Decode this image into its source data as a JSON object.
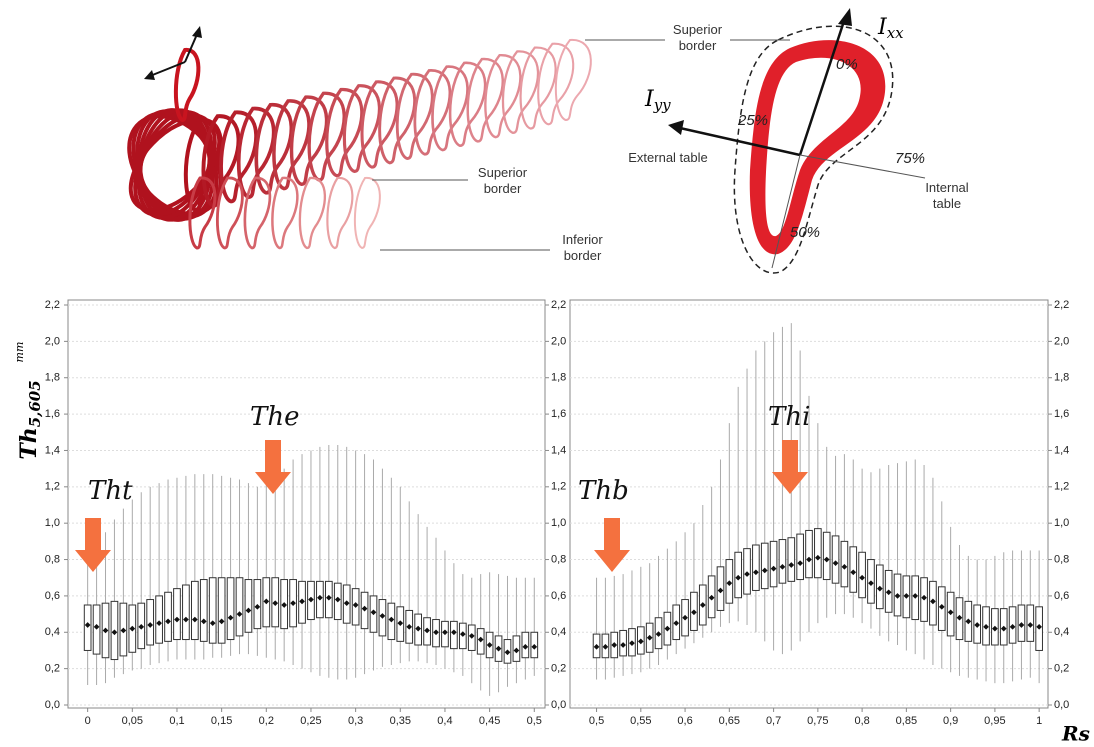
{
  "diagram": {
    "superior_border_1": "Superior border",
    "superior_border_2": "Superior border",
    "inferior_border": "Inferior border",
    "external_table": "External table",
    "internal_table": "Internal table",
    "p0": "0%",
    "p25": "25%",
    "p50": "50%",
    "p75": "75%",
    "ixx": {
      "base": "I",
      "sub": "xx"
    },
    "iyy": {
      "base": "I",
      "sub": "yy"
    }
  },
  "figure": {
    "y_label": "Th",
    "y_label_sub": "5,605",
    "y_unit": "mm",
    "x_label": "Rs"
  },
  "chart_data": [
    {
      "type": "box",
      "color": "#333333",
      "whisker_color": "#aaaaaa",
      "grid": true,
      "annotation_color": "#f4713f",
      "annotations": [
        "Tht",
        "The"
      ],
      "x": [
        0,
        0.01,
        0.02,
        0.03,
        0.04,
        0.05,
        0.06,
        0.07,
        0.08,
        0.09,
        0.1,
        0.11,
        0.12,
        0.13,
        0.14,
        0.15,
        0.16,
        0.17,
        0.18,
        0.19,
        0.2,
        0.21,
        0.22,
        0.23,
        0.24,
        0.25,
        0.26,
        0.27,
        0.28,
        0.29,
        0.3,
        0.31,
        0.32,
        0.33,
        0.34,
        0.35,
        0.36,
        0.37,
        0.38,
        0.39,
        0.4,
        0.41,
        0.42,
        0.43,
        0.44,
        0.45,
        0.46,
        0.47,
        0.48,
        0.49,
        0.5
      ],
      "median": [
        0.44,
        0.43,
        0.41,
        0.4,
        0.41,
        0.42,
        0.43,
        0.44,
        0.45,
        0.46,
        0.47,
        0.47,
        0.47,
        0.46,
        0.45,
        0.46,
        0.48,
        0.5,
        0.52,
        0.54,
        0.57,
        0.56,
        0.55,
        0.56,
        0.57,
        0.58,
        0.59,
        0.59,
        0.58,
        0.56,
        0.55,
        0.53,
        0.51,
        0.49,
        0.47,
        0.45,
        0.43,
        0.42,
        0.41,
        0.4,
        0.4,
        0.4,
        0.39,
        0.38,
        0.36,
        0.33,
        0.31,
        0.29,
        0.3,
        0.32,
        0.32
      ],
      "q1": [
        0.3,
        0.28,
        0.26,
        0.25,
        0.27,
        0.29,
        0.31,
        0.33,
        0.34,
        0.35,
        0.36,
        0.36,
        0.36,
        0.35,
        0.34,
        0.34,
        0.36,
        0.38,
        0.4,
        0.42,
        0.43,
        0.43,
        0.42,
        0.43,
        0.45,
        0.47,
        0.48,
        0.48,
        0.47,
        0.45,
        0.44,
        0.42,
        0.4,
        0.38,
        0.36,
        0.35,
        0.34,
        0.33,
        0.33,
        0.32,
        0.32,
        0.31,
        0.31,
        0.3,
        0.28,
        0.26,
        0.24,
        0.23,
        0.24,
        0.26,
        0.26
      ],
      "q3": [
        0.55,
        0.55,
        0.56,
        0.57,
        0.56,
        0.55,
        0.56,
        0.58,
        0.6,
        0.62,
        0.64,
        0.66,
        0.68,
        0.69,
        0.7,
        0.7,
        0.7,
        0.7,
        0.69,
        0.69,
        0.7,
        0.7,
        0.69,
        0.69,
        0.68,
        0.68,
        0.68,
        0.68,
        0.67,
        0.66,
        0.64,
        0.62,
        0.6,
        0.58,
        0.56,
        0.54,
        0.52,
        0.5,
        0.48,
        0.47,
        0.46,
        0.46,
        0.45,
        0.44,
        0.42,
        0.4,
        0.38,
        0.36,
        0.38,
        0.4,
        0.4
      ],
      "min": [
        0.11,
        0.11,
        0.12,
        0.15,
        0.17,
        0.19,
        0.2,
        0.22,
        0.23,
        0.24,
        0.25,
        0.25,
        0.25,
        0.25,
        0.26,
        0.26,
        0.27,
        0.28,
        0.28,
        0.27,
        0.26,
        0.25,
        0.24,
        0.22,
        0.2,
        0.18,
        0.16,
        0.15,
        0.14,
        0.14,
        0.15,
        0.17,
        0.19,
        0.21,
        0.22,
        0.23,
        0.24,
        0.24,
        0.23,
        0.22,
        0.2,
        0.18,
        0.16,
        0.12,
        0.08,
        0.05,
        0.07,
        0.1,
        0.12,
        0.14,
        0.16
      ],
      "max": [
        0.82,
        0.88,
        0.95,
        1.02,
        1.08,
        1.13,
        1.17,
        1.2,
        1.22,
        1.24,
        1.25,
        1.26,
        1.27,
        1.27,
        1.27,
        1.26,
        1.25,
        1.24,
        1.22,
        1.2,
        1.22,
        1.26,
        1.3,
        1.35,
        1.38,
        1.4,
        1.42,
        1.43,
        1.43,
        1.42,
        1.4,
        1.38,
        1.35,
        1.3,
        1.25,
        1.2,
        1.12,
        1.05,
        0.98,
        0.92,
        0.85,
        0.78,
        0.72,
        0.7,
        0.72,
        0.73,
        0.72,
        0.71,
        0.7,
        0.7,
        0.7
      ],
      "xlim": [
        -0.022,
        0.512
      ],
      "ylim": [
        0,
        2.2
      ],
      "xticks": [
        0,
        {
          "value": 0.05,
          "label": "0,05"
        },
        {
          "value": 0.1,
          "label": "0,1"
        },
        {
          "value": 0.15,
          "label": "0,15"
        },
        {
          "value": 0.2,
          "label": "0,2"
        },
        {
          "value": 0.25,
          "label": "0,25"
        },
        {
          "value": 0.3,
          "label": "0,3"
        },
        {
          "value": 0.35,
          "label": "0,35"
        },
        {
          "value": 0.4,
          "label": "0,4"
        },
        {
          "value": 0.45,
          "label": "0,45"
        },
        {
          "value": 0.5,
          "label": "0,5"
        }
      ],
      "yticks": [
        {
          "value": 0,
          "label": "0,0"
        },
        {
          "value": 0.2,
          "label": "0,2"
        },
        {
          "value": 0.4,
          "label": "0,4"
        },
        {
          "value": 0.6,
          "label": "0,6"
        },
        {
          "value": 0.8,
          "label": "0,8"
        },
        {
          "value": 1.0,
          "label": "1,0"
        },
        {
          "value": 1.2,
          "label": "1,2"
        },
        {
          "value": 1.4,
          "label": "1,4"
        },
        {
          "value": 1.6,
          "label": "1,6"
        },
        {
          "value": 1.8,
          "label": "1,8"
        },
        {
          "value": 2.0,
          "label": "2,0"
        },
        {
          "value": 2.2,
          "label": "2,2"
        }
      ]
    },
    {
      "type": "box",
      "color": "#333333",
      "whisker_color": "#aaaaaa",
      "grid": true,
      "annotation_color": "#f4713f",
      "annotations": [
        "Thb",
        "Thi"
      ],
      "x": [
        0.5,
        0.51,
        0.52,
        0.53,
        0.54,
        0.55,
        0.56,
        0.57,
        0.58,
        0.59,
        0.6,
        0.61,
        0.62,
        0.63,
        0.64,
        0.65,
        0.66,
        0.67,
        0.68,
        0.69,
        0.7,
        0.71,
        0.72,
        0.73,
        0.74,
        0.75,
        0.76,
        0.77,
        0.78,
        0.79,
        0.8,
        0.81,
        0.82,
        0.83,
        0.84,
        0.85,
        0.86,
        0.87,
        0.88,
        0.89,
        0.9,
        0.91,
        0.92,
        0.93,
        0.94,
        0.95,
        0.96,
        0.97,
        0.98,
        0.99,
        1
      ],
      "median": [
        0.32,
        0.32,
        0.33,
        0.33,
        0.34,
        0.35,
        0.37,
        0.39,
        0.42,
        0.45,
        0.48,
        0.51,
        0.55,
        0.59,
        0.63,
        0.67,
        0.7,
        0.72,
        0.73,
        0.74,
        0.75,
        0.76,
        0.77,
        0.78,
        0.8,
        0.81,
        0.8,
        0.78,
        0.76,
        0.73,
        0.7,
        0.67,
        0.64,
        0.62,
        0.6,
        0.6,
        0.6,
        0.59,
        0.57,
        0.54,
        0.51,
        0.48,
        0.46,
        0.44,
        0.43,
        0.42,
        0.42,
        0.43,
        0.44,
        0.44,
        0.43
      ],
      "q1": [
        0.26,
        0.26,
        0.26,
        0.27,
        0.27,
        0.28,
        0.29,
        0.31,
        0.33,
        0.36,
        0.38,
        0.41,
        0.44,
        0.48,
        0.52,
        0.56,
        0.59,
        0.61,
        0.63,
        0.64,
        0.65,
        0.67,
        0.68,
        0.69,
        0.7,
        0.7,
        0.69,
        0.67,
        0.65,
        0.62,
        0.59,
        0.56,
        0.53,
        0.51,
        0.49,
        0.48,
        0.47,
        0.46,
        0.44,
        0.41,
        0.38,
        0.36,
        0.35,
        0.34,
        0.33,
        0.33,
        0.33,
        0.34,
        0.35,
        0.35,
        0.3
      ],
      "q3": [
        0.39,
        0.39,
        0.4,
        0.41,
        0.42,
        0.43,
        0.45,
        0.48,
        0.51,
        0.55,
        0.58,
        0.62,
        0.66,
        0.71,
        0.76,
        0.8,
        0.84,
        0.86,
        0.88,
        0.89,
        0.9,
        0.91,
        0.92,
        0.94,
        0.96,
        0.97,
        0.95,
        0.93,
        0.9,
        0.87,
        0.84,
        0.8,
        0.77,
        0.74,
        0.72,
        0.71,
        0.71,
        0.7,
        0.68,
        0.65,
        0.62,
        0.59,
        0.57,
        0.55,
        0.54,
        0.53,
        0.53,
        0.54,
        0.55,
        0.55,
        0.54
      ],
      "min": [
        0.14,
        0.14,
        0.15,
        0.16,
        0.17,
        0.18,
        0.2,
        0.22,
        0.25,
        0.28,
        0.31,
        0.34,
        0.37,
        0.4,
        0.43,
        0.45,
        0.46,
        0.44,
        0.4,
        0.35,
        0.3,
        0.28,
        0.3,
        0.35,
        0.4,
        0.45,
        0.48,
        0.5,
        0.5,
        0.48,
        0.45,
        0.42,
        0.38,
        0.35,
        0.33,
        0.3,
        0.28,
        0.25,
        0.22,
        0.2,
        0.18,
        0.16,
        0.15,
        0.14,
        0.13,
        0.12,
        0.12,
        0.13,
        0.14,
        0.15,
        0.12
      ],
      "max": [
        0.7,
        0.7,
        0.71,
        0.72,
        0.74,
        0.76,
        0.78,
        0.82,
        0.86,
        0.9,
        0.95,
        1.0,
        1.1,
        1.2,
        1.35,
        1.55,
        1.75,
        1.85,
        1.95,
        2.0,
        2.05,
        2.08,
        2.1,
        1.95,
        1.7,
        1.55,
        1.42,
        1.37,
        1.38,
        1.35,
        1.3,
        1.28,
        1.3,
        1.32,
        1.33,
        1.34,
        1.35,
        1.32,
        1.25,
        1.12,
        0.98,
        0.88,
        0.82,
        0.8,
        0.8,
        0.82,
        0.84,
        0.85,
        0.85,
        0.85,
        0.85
      ],
      "xlim": [
        0.47,
        1.01
      ],
      "ylim": [
        0,
        2.2
      ],
      "xticks": [
        {
          "value": 0.5,
          "label": "0,5"
        },
        {
          "value": 0.55,
          "label": "0,55"
        },
        {
          "value": 0.6,
          "label": "0,6"
        },
        {
          "value": 0.65,
          "label": "0,65"
        },
        {
          "value": 0.7,
          "label": "0,7"
        },
        {
          "value": 0.75,
          "label": "0,75"
        },
        {
          "value": 0.8,
          "label": "0,8"
        },
        {
          "value": 0.85,
          "label": "0,85"
        },
        {
          "value": 0.9,
          "label": "0,9"
        },
        {
          "value": 0.95,
          "label": "0,95"
        },
        1
      ],
      "yticks": [
        {
          "value": 0,
          "label": "0,0"
        },
        {
          "value": 0.2,
          "label": "0,2"
        },
        {
          "value": 0.4,
          "label": "0,4"
        },
        {
          "value": 0.6,
          "label": "0,6"
        },
        {
          "value": 0.8,
          "label": "0,8"
        },
        {
          "value": 1.0,
          "label": "1,0"
        },
        {
          "value": 1.2,
          "label": "1,2"
        },
        {
          "value": 1.4,
          "label": "1,4"
        },
        {
          "value": 1.6,
          "label": "1,6"
        },
        {
          "value": 1.8,
          "label": "1,8"
        },
        {
          "value": 2.0,
          "label": "2,0"
        },
        {
          "value": 2.2,
          "label": "2,2"
        }
      ]
    }
  ]
}
